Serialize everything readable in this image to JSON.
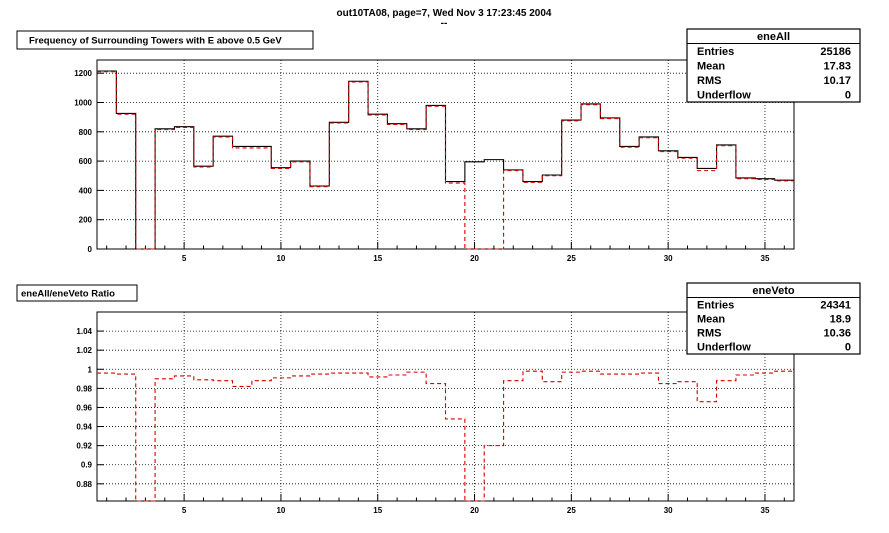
{
  "header": {
    "title": "out10TA08, page=7,  Wed Nov  3 17:23:45 2004",
    "subtitle": "--"
  },
  "colors": {
    "hist_main": "#000000",
    "hist_veto": "#d40000",
    "grid": "#000000"
  },
  "chart_data": [
    {
      "type": "bar",
      "title": "Frequency of Surrounding Towers with E above 0.5 GeV",
      "xlim": [
        0.5,
        36.5
      ],
      "ylim": [
        0,
        1290
      ],
      "xticks": [
        5,
        10,
        15,
        20,
        25,
        30,
        35
      ],
      "yticks": [
        0,
        200,
        400,
        600,
        800,
        1000,
        1200
      ],
      "ytick_labels": [
        "0",
        "200",
        "400",
        "600",
        "800",
        "1000",
        "1200"
      ],
      "grid": true,
      "x": [
        1,
        2,
        3,
        4,
        5,
        6,
        7,
        8,
        9,
        10,
        11,
        12,
        13,
        14,
        15,
        16,
        17,
        18,
        19,
        20,
        21,
        22,
        23,
        24,
        25,
        26,
        27,
        28,
        29,
        30,
        31,
        32,
        33,
        34,
        35,
        36
      ],
      "series": [
        {
          "name": "eneAll",
          "values": [
            1215,
            925,
            0,
            820,
            835,
            565,
            770,
            700,
            700,
            555,
            600,
            430,
            865,
            1145,
            920,
            855,
            820,
            980,
            460,
            595,
            610,
            540,
            460,
            505,
            880,
            990,
            895,
            700,
            765,
            670,
            625,
            550,
            710,
            485,
            480,
            470
          ]
        },
        {
          "name": "eneVeto",
          "values": [
            1210,
            920,
            0,
            815,
            830,
            560,
            765,
            690,
            690,
            550,
            595,
            425,
            860,
            1140,
            915,
            850,
            815,
            975,
            450,
            0,
            0,
            535,
            455,
            500,
            875,
            985,
            890,
            695,
            760,
            665,
            620,
            535,
            705,
            480,
            475,
            465
          ]
        }
      ],
      "stats": {
        "name": "eneAll",
        "rows": [
          {
            "label": "Entries",
            "value": "25186"
          },
          {
            "label": "Mean",
            "value": "17.83"
          },
          {
            "label": "RMS",
            "value": "10.17"
          },
          {
            "label": "Underflow",
            "value": "0"
          }
        ]
      }
    },
    {
      "type": "line",
      "title": "eneAll/eneVeto Ratio",
      "xlim": [
        0.5,
        36.5
      ],
      "ylim": [
        0.862,
        1.06
      ],
      "xticks": [
        5,
        10,
        15,
        20,
        25,
        30,
        35
      ],
      "yticks": [
        0.88,
        0.9,
        0.92,
        0.94,
        0.96,
        0.98,
        1,
        1.02,
        1.04
      ],
      "ytick_labels": [
        "0.88",
        "0.9",
        "0.92",
        "0.94",
        "0.96",
        "0.98",
        "1",
        "1.02",
        "1.04"
      ],
      "grid": true,
      "x": [
        1,
        2,
        3,
        4,
        5,
        6,
        7,
        8,
        9,
        10,
        11,
        12,
        13,
        14,
        15,
        16,
        17,
        18,
        19,
        20,
        21,
        22,
        23,
        24,
        25,
        26,
        27,
        28,
        29,
        30,
        31,
        32,
        33,
        34,
        35,
        36
      ],
      "series": [
        {
          "name": "",
          "values": [
            0.996,
            0.995,
            0.862,
            0.99,
            0.993,
            0.989,
            0.988,
            0.982,
            0.988,
            0.991,
            0.993,
            0.995,
            0.996,
            0.996,
            0.992,
            0.994,
            0.997,
            0.985,
            0.948,
            0.862,
            0.92,
            0.988,
            0.998,
            0.987,
            0.997,
            0.998,
            0.995,
            0.995,
            0.996,
            0.985,
            0.987,
            0.966,
            0.988,
            0.994,
            0.996,
            0.998
          ]
        }
      ],
      "stats": {
        "name": "eneVeto",
        "rows": [
          {
            "label": "Entries",
            "value": "24341"
          },
          {
            "label": "Mean",
            "value": "18.9"
          },
          {
            "label": "RMS",
            "value": "10.36"
          },
          {
            "label": "Underflow",
            "value": "0"
          }
        ]
      }
    }
  ]
}
